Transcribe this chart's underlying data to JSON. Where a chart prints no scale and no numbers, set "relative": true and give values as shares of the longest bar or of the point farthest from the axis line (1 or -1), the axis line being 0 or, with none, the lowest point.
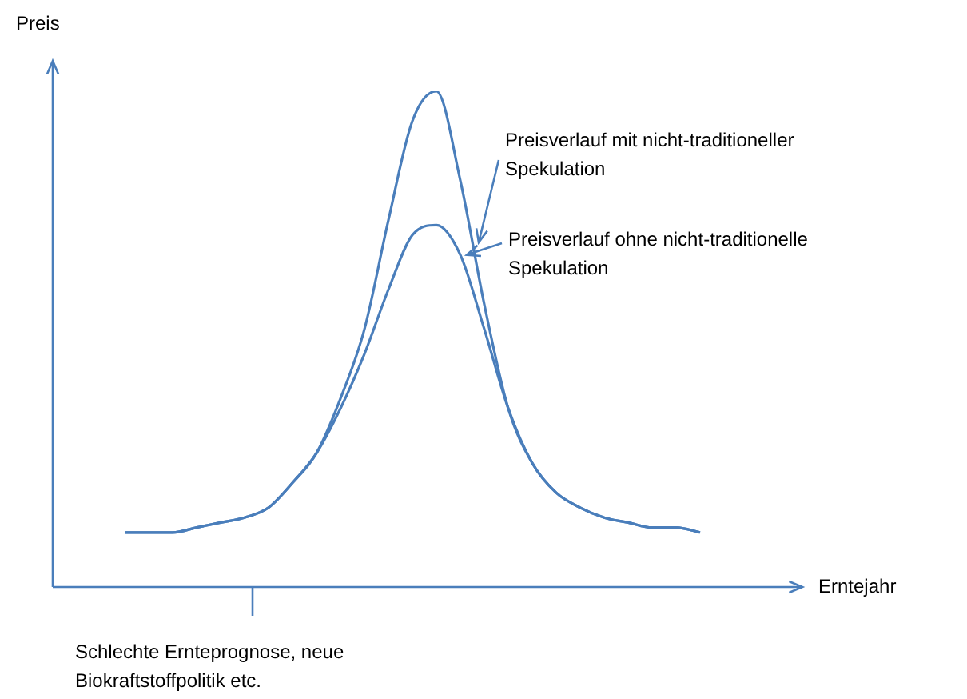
{
  "chart_data": {
    "type": "line",
    "relative": true,
    "xlabel": "Erntejahr",
    "ylabel": "Preis",
    "categories": [
      null,
      null,
      null,
      null,
      null,
      null,
      null,
      null,
      null,
      null,
      null,
      null,
      null,
      null,
      null,
      null,
      null,
      null,
      null,
      null,
      null,
      null,
      null,
      null,
      null,
      null,
      null,
      null,
      null,
      null,
      null,
      null
    ],
    "series": [
      {
        "name": "Preisverlauf mit nicht-traditioneller Spekulation",
        "color": "#4a7ebb",
        "values": [
          null,
          null,
          null,
          0.11,
          0.11,
          0.11,
          0.12,
          0.13,
          0.14,
          0.16,
          0.21,
          0.27,
          0.38,
          0.52,
          0.74,
          0.94,
          1,
          0.82,
          0.57,
          0.36,
          0.25,
          0.19,
          0.16,
          0.14,
          0.13,
          0.12,
          0.12,
          0.11,
          null,
          null,
          null,
          null
        ]
      },
      {
        "name": "Preisverlauf ohne nicht-traditionelle Spekulation",
        "color": "#4a7ebb",
        "values": [
          null,
          null,
          null,
          0.11,
          0.11,
          0.11,
          0.12,
          0.13,
          0.14,
          0.16,
          0.21,
          0.27,
          0.36,
          0.47,
          0.6,
          0.71,
          0.73,
          0.67,
          0.52,
          0.36,
          0.25,
          0.19,
          0.16,
          0.14,
          0.13,
          0.12,
          0.12,
          0.11,
          null,
          null,
          null,
          null
        ]
      }
    ],
    "annotations": [
      "Schlechte Ernteprognose, neue Biokraftstoffpolitik etc."
    ],
    "grid": false,
    "marker": "none",
    "line_style": "solid"
  }
}
